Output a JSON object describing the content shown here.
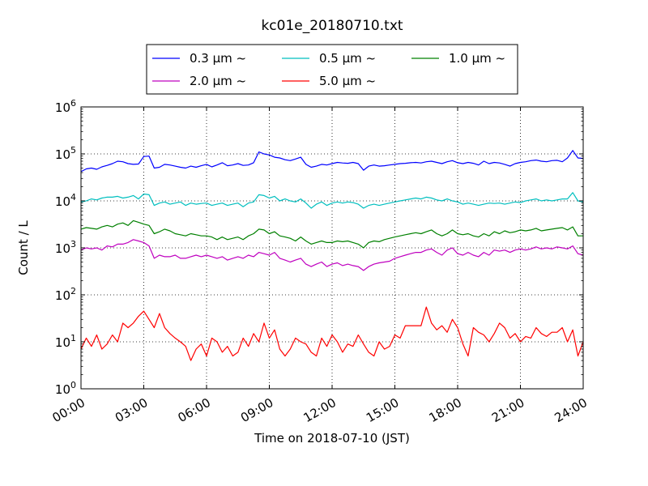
{
  "chart_data": {
    "type": "line",
    "title": "kc01e_20180710.txt",
    "xlabel": "Time on 2018-07-10 (JST)",
    "ylabel": "Count / L",
    "yscale": "log",
    "ylim": [
      1,
      1000000
    ],
    "xlim": [
      "00:00",
      "24:00"
    ],
    "x_ticks": [
      "00:00",
      "03:00",
      "06:00",
      "09:00",
      "12:00",
      "15:00",
      "18:00",
      "21:00",
      "24:00"
    ],
    "y_ticks": [
      {
        "base": "10",
        "exp": "0",
        "value": 1
      },
      {
        "base": "10",
        "exp": "1",
        "value": 10
      },
      {
        "base": "10",
        "exp": "2",
        "value": 100
      },
      {
        "base": "10",
        "exp": "3",
        "value": 1000
      },
      {
        "base": "10",
        "exp": "4",
        "value": 10000
      },
      {
        "base": "10",
        "exp": "5",
        "value": 100000
      },
      {
        "base": "10",
        "exp": "6",
        "value": 1000000
      }
    ],
    "grid": true,
    "legend_position": "top-center",
    "x_hours": [
      0,
      0.25,
      0.5,
      0.75,
      1,
      1.25,
      1.5,
      1.75,
      2,
      2.25,
      2.5,
      2.75,
      3,
      3.25,
      3.5,
      3.75,
      4,
      4.25,
      4.5,
      4.75,
      5,
      5.25,
      5.5,
      5.75,
      6,
      6.25,
      6.5,
      6.75,
      7,
      7.25,
      7.5,
      7.75,
      8,
      8.25,
      8.5,
      8.75,
      9,
      9.25,
      9.5,
      9.75,
      10,
      10.25,
      10.5,
      10.75,
      11,
      11.25,
      11.5,
      11.75,
      12,
      12.25,
      12.5,
      12.75,
      13,
      13.25,
      13.5,
      13.75,
      14,
      14.25,
      14.5,
      14.75,
      15,
      15.25,
      15.5,
      15.75,
      16,
      16.25,
      16.5,
      16.75,
      17,
      17.25,
      17.5,
      17.75,
      18,
      18.25,
      18.5,
      18.75,
      19,
      19.25,
      19.5,
      19.75,
      20,
      20.25,
      20.5,
      20.75,
      21,
      21.25,
      21.5,
      21.75,
      22,
      22.25,
      22.5,
      22.75,
      23,
      23.25,
      23.5,
      23.75,
      24
    ],
    "series": [
      {
        "name": "0.3 μm ~",
        "color": "#0000ff",
        "values": [
          42000,
          48000,
          50000,
          47000,
          53000,
          57000,
          62000,
          70000,
          68000,
          62000,
          60000,
          61000,
          88000,
          90000,
          50000,
          52000,
          60000,
          58000,
          55000,
          52000,
          50000,
          55000,
          52000,
          56000,
          60000,
          53000,
          58000,
          65000,
          56000,
          58000,
          62000,
          57000,
          58000,
          65000,
          110000,
          100000,
          95000,
          85000,
          82000,
          75000,
          72000,
          78000,
          85000,
          60000,
          52000,
          55000,
          60000,
          58000,
          62000,
          66000,
          64000,
          63000,
          66000,
          62000,
          45000,
          55000,
          58000,
          55000,
          56000,
          58000,
          60000,
          62000,
          63000,
          65000,
          66000,
          64000,
          68000,
          70000,
          66000,
          62000,
          68000,
          72000,
          65000,
          62000,
          66000,
          63000,
          58000,
          70000,
          62000,
          66000,
          64000,
          60000,
          55000,
          62000,
          66000,
          68000,
          72000,
          74000,
          70000,
          68000,
          72000,
          73000,
          68000,
          82000,
          118000,
          82000,
          80000
        ]
      },
      {
        "name": "0.5 μm ~",
        "color": "#00bfbf",
        "values": [
          9500,
          10000,
          11000,
          10500,
          11500,
          12000,
          12000,
          12500,
          11500,
          12000,
          13000,
          11000,
          14000,
          13500,
          8000,
          9000,
          9500,
          8500,
          9000,
          9500,
          8000,
          9000,
          8500,
          8800,
          9000,
          8000,
          8500,
          9000,
          8000,
          8500,
          9000,
          7500,
          9000,
          9500,
          13500,
          13000,
          11500,
          12500,
          10000,
          11000,
          10000,
          9500,
          11000,
          9000,
          7000,
          8500,
          9500,
          8000,
          9000,
          9500,
          9000,
          9500,
          9200,
          8500,
          7000,
          8000,
          8500,
          8000,
          8500,
          9000,
          9500,
          10000,
          10500,
          11000,
          11500,
          11000,
          12000,
          11500,
          10500,
          10000,
          11000,
          10000,
          9500,
          8500,
          9000,
          8500,
          8000,
          8500,
          9000,
          8800,
          9000,
          8500,
          9000,
          9500,
          9200,
          10000,
          10500,
          11000,
          10000,
          10500,
          10000,
          10500,
          11000,
          11000,
          15000,
          10000,
          9500
        ]
      },
      {
        "name": "1.0 μm ~",
        "color": "#008000",
        "values": [
          2500,
          2700,
          2600,
          2500,
          2800,
          3000,
          2800,
          3200,
          3400,
          3000,
          3800,
          3500,
          3200,
          3000,
          2000,
          2200,
          2500,
          2300,
          2000,
          1900,
          1800,
          2000,
          1900,
          1800,
          1800,
          1700,
          1500,
          1700,
          1500,
          1600,
          1700,
          1500,
          1800,
          2000,
          2500,
          2400,
          2000,
          2200,
          1800,
          1700,
          1600,
          1400,
          1700,
          1400,
          1200,
          1300,
          1400,
          1300,
          1300,
          1400,
          1350,
          1400,
          1300,
          1200,
          1000,
          1300,
          1400,
          1350,
          1500,
          1600,
          1700,
          1800,
          1900,
          2000,
          2100,
          2000,
          2200,
          2400,
          2000,
          1800,
          2000,
          2400,
          2000,
          1900,
          2000,
          1800,
          1700,
          2000,
          1800,
          2200,
          2000,
          2300,
          2100,
          2200,
          2400,
          2300,
          2400,
          2600,
          2300,
          2400,
          2500,
          2600,
          2700,
          2400,
          2800,
          1800,
          1800
        ]
      },
      {
        "name": "2.0 μm ~",
        "color": "#bf00bf",
        "values": [
          900,
          1000,
          950,
          1000,
          900,
          1100,
          1050,
          1200,
          1200,
          1300,
          1500,
          1400,
          1300,
          1100,
          600,
          700,
          650,
          650,
          700,
          600,
          600,
          650,
          700,
          650,
          700,
          650,
          600,
          650,
          550,
          600,
          650,
          600,
          700,
          650,
          800,
          750,
          700,
          800,
          600,
          550,
          500,
          550,
          600,
          450,
          400,
          450,
          500,
          400,
          450,
          480,
          420,
          450,
          420,
          400,
          330,
          400,
          450,
          480,
          500,
          520,
          600,
          650,
          700,
          750,
          800,
          800,
          900,
          950,
          800,
          700,
          900,
          1000,
          750,
          700,
          800,
          700,
          650,
          800,
          700,
          900,
          850,
          900,
          800,
          900,
          950,
          900,
          950,
          1050,
          950,
          1000,
          950,
          1050,
          1000,
          950,
          1100,
          750,
          700
        ]
      },
      {
        "name": "5.0 μm ~",
        "color": "#ff0000",
        "values": [
          7,
          12,
          8,
          14,
          7,
          9,
          14,
          10,
          25,
          20,
          25,
          35,
          45,
          30,
          20,
          40,
          20,
          15,
          12,
          10,
          8,
          4,
          7,
          9,
          5,
          12,
          10,
          6,
          8,
          5,
          6,
          12,
          8,
          15,
          10,
          25,
          12,
          18,
          7,
          5,
          7,
          12,
          10,
          9,
          6,
          5,
          12,
          8,
          14,
          10,
          6,
          9,
          8,
          14,
          9,
          6,
          5,
          10,
          7,
          8,
          14,
          12,
          22,
          22,
          22,
          22,
          55,
          25,
          18,
          22,
          16,
          30,
          20,
          9,
          5,
          20,
          16,
          14,
          10,
          15,
          25,
          20,
          12,
          15,
          10,
          13,
          12,
          20,
          15,
          13,
          16,
          16,
          20,
          10,
          18,
          5,
          10
        ]
      }
    ]
  }
}
